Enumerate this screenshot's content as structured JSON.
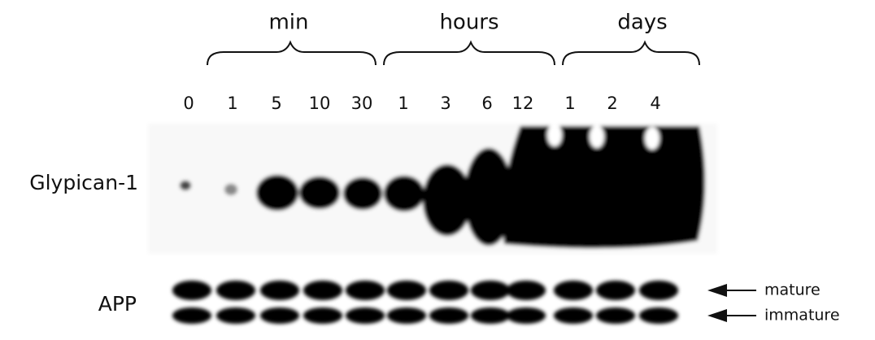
{
  "groups": [
    "min",
    "hours",
    "days"
  ],
  "lanes": [
    "0",
    "1",
    "5",
    "10",
    "30",
    "1",
    "3",
    "6",
    "12",
    "1",
    "2",
    "4"
  ],
  "rows": [
    "Glypican-1",
    "APP"
  ],
  "bands": [
    "mature",
    "immature"
  ]
}
